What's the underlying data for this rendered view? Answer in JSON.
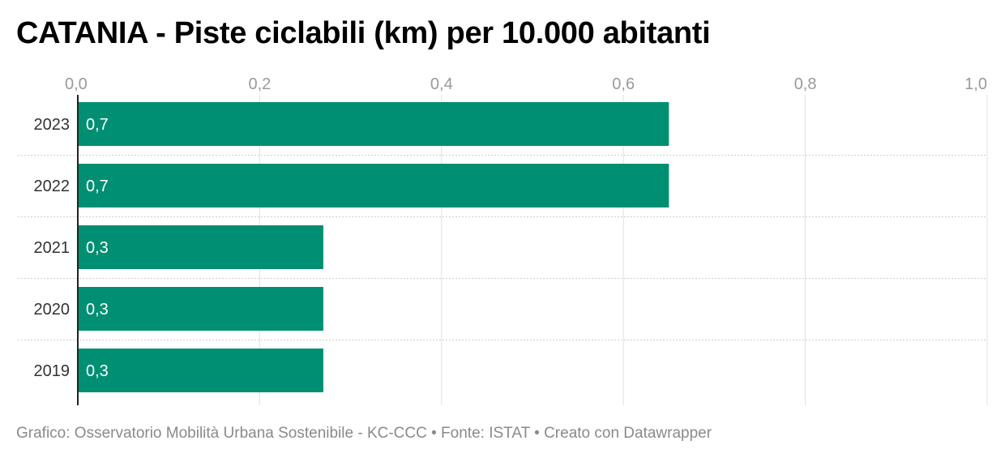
{
  "chart_data": {
    "type": "bar",
    "orientation": "horizontal",
    "title": "CATANIA - Piste ciclabili (km) per 10.000 abitanti",
    "categories": [
      "2023",
      "2022",
      "2021",
      "2020",
      "2019"
    ],
    "values": [
      0.65,
      0.65,
      0.27,
      0.27,
      0.27
    ],
    "value_labels": [
      "0,7",
      "0,7",
      "0,3",
      "0,3",
      "0,3"
    ],
    "xlim": [
      0,
      1.0
    ],
    "x_ticks": [
      0,
      0.2,
      0.4,
      0.6,
      0.8,
      1.0
    ],
    "x_tick_labels": [
      "0,0",
      "0,2",
      "0,4",
      "0,6",
      "0,8",
      "1,0"
    ],
    "x_axis_position": "top",
    "grid": true,
    "bar_color": "#008f72",
    "footer": "Grafico: Osservatorio Mobilità Urbana Sostenibile - KC-CCC • Fonte: ISTAT • Creato con Datawrapper"
  }
}
